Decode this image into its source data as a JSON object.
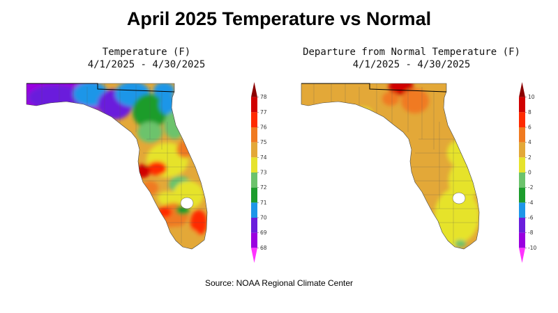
{
  "title": "April 2025 Temperature vs Normal",
  "left_map": {
    "title_line1": "Temperature (F)",
    "title_line2": "4/1/2025 - 4/30/2025",
    "legend": {
      "labels": [
        "78",
        "77",
        "76",
        "75",
        "74",
        "73",
        "72",
        "71",
        "70",
        "69",
        "68"
      ],
      "colors": [
        "#8b0000",
        "#d00000",
        "#ff2a00",
        "#f07a20",
        "#e3a838",
        "#e6e32c",
        "#6cc36c",
        "#1c9c2c",
        "#1e96e8",
        "#6a1edc",
        "#9a00e0",
        "#ff33ff"
      ]
    }
  },
  "right_map": {
    "title_line1": "Departure from Normal Temperature (F)",
    "title_line2": "4/1/2025 - 4/30/2025",
    "legend": {
      "labels": [
        "10",
        "8",
        "6",
        "4",
        "2",
        "0",
        "-2",
        "-4",
        "-6",
        "-8",
        "-10"
      ],
      "colors": [
        "#8b0000",
        "#d00000",
        "#ff2a00",
        "#f07a20",
        "#e3a838",
        "#e6e32c",
        "#6cc36c",
        "#1c9c2c",
        "#1e96e8",
        "#6a1edc",
        "#9a00e0",
        "#ff33ff"
      ]
    }
  },
  "source": "Source:  NOAA Regional Climate Center"
}
